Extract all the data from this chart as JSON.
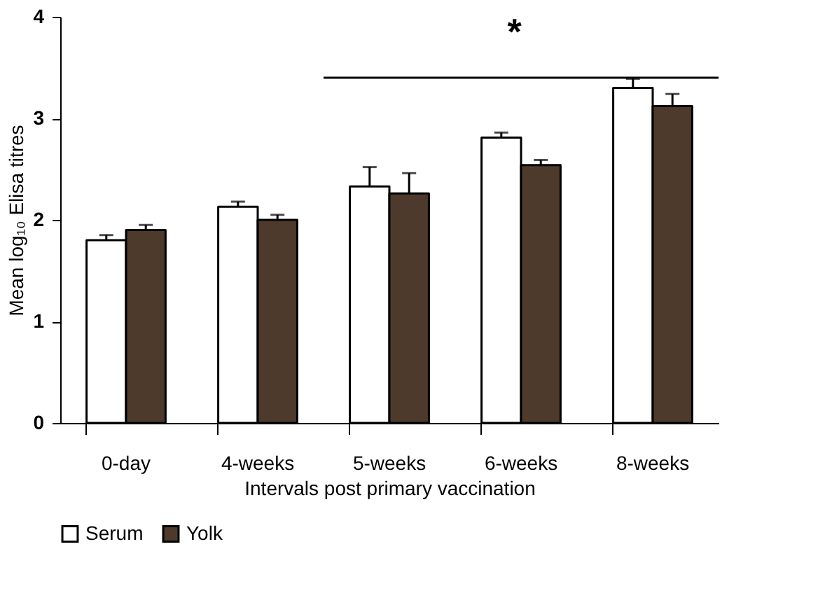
{
  "chart_data": {
    "type": "bar",
    "xlabel": "Intervals post primary vaccination",
    "ylabel": "Mean log₁₀ Elisa titres",
    "categories": [
      "0-day",
      "4-weeks",
      "5-weeks",
      "6-weeks",
      "8-weeks"
    ],
    "series": [
      {
        "name": "Serum",
        "color": "#ffffff",
        "values": [
          1.8,
          2.13,
          2.33,
          2.81,
          3.3
        ],
        "errors": [
          [
            1.8,
            1.85
          ],
          [
            2.13,
            2.18
          ],
          [
            2.33,
            2.52
          ],
          [
            2.81,
            2.86
          ],
          [
            3.3,
            3.39
          ]
        ]
      },
      {
        "name": "Yolk",
        "color": "#4e3a2c",
        "values": [
          1.9,
          2.0,
          2.26,
          2.54,
          3.12
        ],
        "errors": [
          [
            1.9,
            1.95
          ],
          [
            2.0,
            2.05
          ],
          [
            2.26,
            2.46
          ],
          [
            2.54,
            2.59
          ],
          [
            3.12,
            3.24
          ]
        ]
      }
    ],
    "ylim": [
      0,
      4
    ],
    "yticks": [
      0,
      1,
      2,
      3,
      4
    ],
    "grid": false,
    "legend": "bottom",
    "annotations": [
      "*"
    ]
  }
}
